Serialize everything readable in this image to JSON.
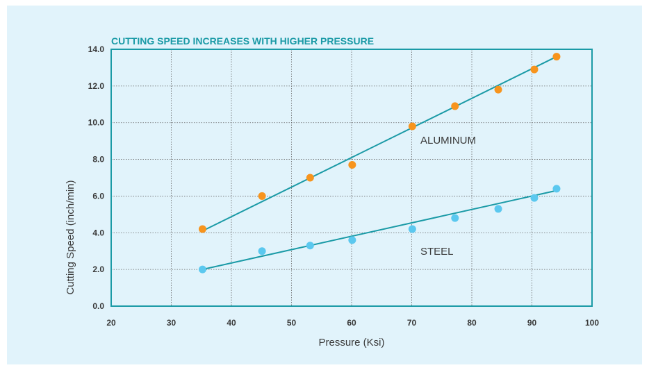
{
  "chart_data": {
    "type": "scatter",
    "title": "CUTTING SPEED INCREASES WITH HIGHER PRESSURE",
    "xlabel": "Pressure (Ksi)",
    "ylabel": "Cutting Speed (inch/min)",
    "xlim": [
      20,
      100
    ],
    "ylim": [
      0,
      14
    ],
    "x_ticks": [
      "20",
      "30",
      "40",
      "50",
      "60",
      "70",
      "80",
      "90",
      "100"
    ],
    "y_ticks": [
      "0.0",
      "2.0",
      "4.0",
      "6.0",
      "8.0",
      "10.0",
      "12.0",
      "14.0"
    ],
    "grid": true,
    "series": [
      {
        "name": "ALUMINUM",
        "color": "#f7941d",
        "x": [
          35.2,
          45.1,
          53.1,
          60.1,
          70.1,
          77.2,
          84.4,
          90.4,
          94.1
        ],
        "y": [
          4.2,
          6.0,
          7.0,
          7.7,
          9.8,
          10.9,
          11.8,
          12.9,
          13.6
        ],
        "trend": {
          "x": [
            35.2,
            94.1
          ],
          "y": [
            4.1,
            13.6
          ],
          "color": "#1a9aa6"
        }
      },
      {
        "name": "STEEL",
        "color": "#5bc8ef",
        "x": [
          35.2,
          45.1,
          53.1,
          60.1,
          70.1,
          77.2,
          84.4,
          90.4,
          94.1
        ],
        "y": [
          2.0,
          3.0,
          3.3,
          3.6,
          4.2,
          4.8,
          5.3,
          5.9,
          6.4
        ],
        "trend": {
          "x": [
            35.2,
            94.1
          ],
          "y": [
            2.0,
            6.3
          ],
          "color": "#1a9aa6"
        }
      }
    ]
  }
}
